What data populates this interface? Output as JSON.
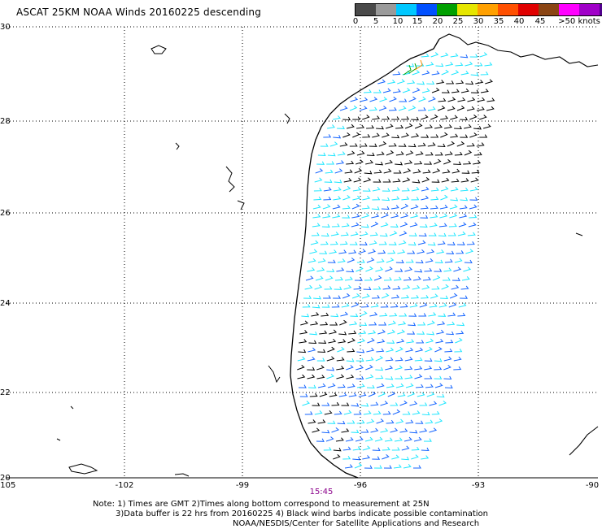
{
  "title": "ASCAT 25KM NOAA Winds 20160225 descending",
  "legend": {
    "colors": [
      "#4a4a4a",
      "#9a9a9a",
      "#00c8ff",
      "#0050ff",
      "#00a000",
      "#e6e600",
      "#ffa000",
      "#ff5000",
      "#e00000",
      "#8b4513",
      "#ff00ff",
      "#a000c8",
      "#50008c"
    ],
    "ticks": [
      "0",
      "5",
      "10",
      "15",
      "20",
      "25",
      "30",
      "35",
      "40",
      "45",
      ">50 knots"
    ]
  },
  "axes": {
    "lat_labels": [
      "30",
      "28",
      "26",
      "24",
      "22",
      "20"
    ],
    "lon_labels": [
      "-105",
      "-102",
      "-99",
      "-96",
      "-93",
      "-90"
    ]
  },
  "pass_time": "15:45",
  "notes": {
    "line1": "Note: 1) Times are GMT 2)Times along bottom correspond to measurement at 25N",
    "line2": "3)Data buffer is 22 hrs from 20160225 4) Black wind barbs indicate possible contamination",
    "line3": "NOAA/NESDIS/Center for Satellite Applications and Research"
  },
  "barb_colors": {
    "black": "#000000",
    "cyan": "#1ee6ff",
    "blue": "#1464ff",
    "green": "#00a000",
    "orange": "#ff8c00"
  }
}
